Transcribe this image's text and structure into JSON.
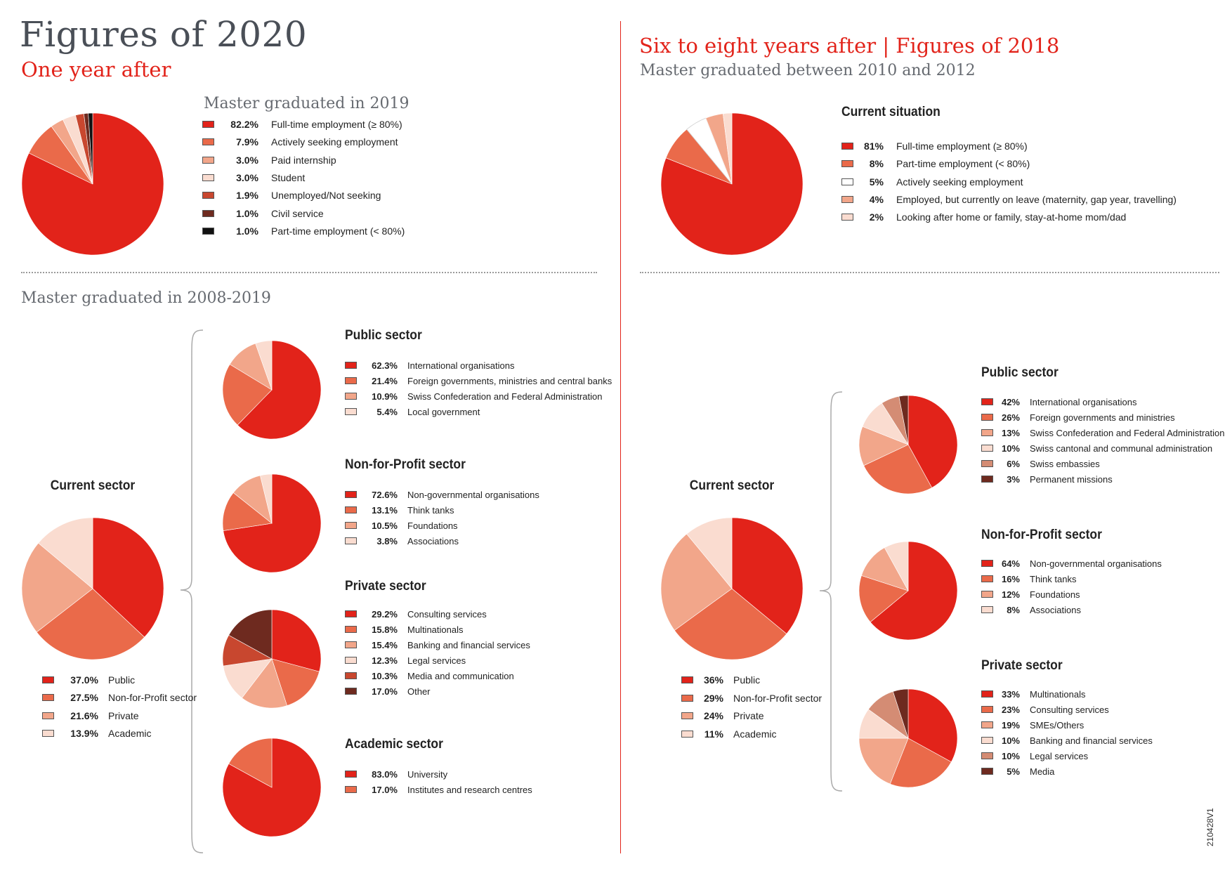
{
  "page": {
    "left_title": "Figures of 2020",
    "left_subtitle": "One year after",
    "left_group_caption": "Master graduated in 2019",
    "left_lower_caption": "Master graduated in 2008-2019",
    "right_title": "Six to eight years after | Figures of 2018",
    "right_subtitle": "Master graduated between 2010 and 2012",
    "doc_code": "210428V1"
  },
  "colors": {
    "red": "#e2231a",
    "orange": "#ea6a4a",
    "salmon": "#f2a68a",
    "pale": "#fadcd0",
    "brick": "#c8472f",
    "brown": "#6e2a1f",
    "black": "#111111",
    "white": "#ffffff",
    "tan": "#d48c74",
    "accent": "#e2231a",
    "divider": "#9a9a9a"
  },
  "chart_data": [
    {
      "id": "l_top",
      "type": "pie",
      "title": "",
      "slices": [
        {
          "pct": "82.2%",
          "label": "Full-time employment (≥ 80%)",
          "value": 82.2,
          "color": "red"
        },
        {
          "pct": "7.9%",
          "label": "Actively seeking employment",
          "value": 7.9,
          "color": "orange"
        },
        {
          "pct": "3.0%",
          "label": "Paid internship",
          "value": 3.0,
          "color": "salmon"
        },
        {
          "pct": "3.0%",
          "label": "Student",
          "value": 3.0,
          "color": "pale"
        },
        {
          "pct": "1.9%",
          "label": "Unemployed/Not seeking",
          "value": 1.9,
          "color": "brick"
        },
        {
          "pct": "1.0%",
          "label": "Civil service",
          "value": 1.0,
          "color": "brown"
        },
        {
          "pct": "1.0%",
          "label": "Part-time employment (< 80%)",
          "value": 1.0,
          "color": "black"
        }
      ]
    },
    {
      "id": "r_top",
      "type": "pie",
      "title": "Current situation",
      "slices": [
        {
          "pct": "81%",
          "label": "Full-time employment (≥ 80%)",
          "value": 81,
          "color": "red"
        },
        {
          "pct": "8%",
          "label": "Part-time employment (< 80%)",
          "value": 8,
          "color": "orange"
        },
        {
          "pct": "5%",
          "label": "Actively seeking employment",
          "value": 5,
          "color": "white"
        },
        {
          "pct": "4%",
          "label": "Employed, but currently on leave (maternity, gap year, travelling)",
          "value": 4,
          "color": "salmon"
        },
        {
          "pct": "2%",
          "label": "Looking after home or family, stay-at-home mom/dad",
          "value": 2,
          "color": "pale"
        }
      ]
    },
    {
      "id": "l_sector",
      "type": "pie",
      "title": "Current sector",
      "slices": [
        {
          "pct": "37.0%",
          "label": "Public",
          "value": 37.0,
          "color": "red"
        },
        {
          "pct": "27.5%",
          "label": "Non-for-Profit sector",
          "value": 27.5,
          "color": "orange"
        },
        {
          "pct": "21.6%",
          "label": "Private",
          "value": 21.6,
          "color": "salmon"
        },
        {
          "pct": "13.9%",
          "label": "Academic",
          "value": 13.9,
          "color": "pale"
        }
      ]
    },
    {
      "id": "l_public",
      "type": "pie",
      "title": "Public sector",
      "slices": [
        {
          "pct": "62.3%",
          "label": "International organisations",
          "value": 62.3,
          "color": "red"
        },
        {
          "pct": "21.4%",
          "label": "Foreign governments, ministries and central banks",
          "value": 21.4,
          "color": "orange"
        },
        {
          "pct": "10.9%",
          "label": "Swiss Confederation and Federal Administration",
          "value": 10.9,
          "color": "salmon"
        },
        {
          "pct": "5.4%",
          "label": "Local government",
          "value": 5.4,
          "color": "pale"
        }
      ]
    },
    {
      "id": "l_nfp",
      "type": "pie",
      "title": "Non-for-Profit sector",
      "slices": [
        {
          "pct": "72.6%",
          "label": "Non-governmental organisations",
          "value": 72.6,
          "color": "red"
        },
        {
          "pct": "13.1%",
          "label": "Think tanks",
          "value": 13.1,
          "color": "orange"
        },
        {
          "pct": "10.5%",
          "label": "Foundations",
          "value": 10.5,
          "color": "salmon"
        },
        {
          "pct": "3.8%",
          "label": "Associations",
          "value": 3.8,
          "color": "pale"
        }
      ]
    },
    {
      "id": "l_private",
      "type": "pie",
      "title": "Private sector",
      "slices": [
        {
          "pct": "29.2%",
          "label": "Consulting services",
          "value": 29.2,
          "color": "red"
        },
        {
          "pct": "15.8%",
          "label": "Multinationals",
          "value": 15.8,
          "color": "orange"
        },
        {
          "pct": "15.4%",
          "label": "Banking and financial services",
          "value": 15.4,
          "color": "salmon"
        },
        {
          "pct": "12.3%",
          "label": "Legal services",
          "value": 12.3,
          "color": "pale"
        },
        {
          "pct": "10.3%",
          "label": "Media and communication",
          "value": 10.3,
          "color": "brick"
        },
        {
          "pct": "17.0%",
          "label": "Other",
          "value": 17.0,
          "color": "brown"
        }
      ]
    },
    {
      "id": "l_academic",
      "type": "pie",
      "title": "Academic sector",
      "slices": [
        {
          "pct": "83.0%",
          "label": "University",
          "value": 83.0,
          "color": "red"
        },
        {
          "pct": "17.0%",
          "label": "Institutes and research centres",
          "value": 17.0,
          "color": "orange"
        }
      ]
    },
    {
      "id": "r_sector",
      "type": "pie",
      "title": "Current sector",
      "slices": [
        {
          "pct": "36%",
          "label": "Public",
          "value": 36,
          "color": "red"
        },
        {
          "pct": "29%",
          "label": "Non-for-Profit sector",
          "value": 29,
          "color": "orange"
        },
        {
          "pct": "24%",
          "label": "Private",
          "value": 24,
          "color": "salmon"
        },
        {
          "pct": "11%",
          "label": "Academic",
          "value": 11,
          "color": "pale"
        }
      ]
    },
    {
      "id": "r_public",
      "type": "pie",
      "title": "Public sector",
      "slices": [
        {
          "pct": "42%",
          "label": "International organisations",
          "value": 42,
          "color": "red"
        },
        {
          "pct": "26%",
          "label": "Foreign governments and ministries",
          "value": 26,
          "color": "orange"
        },
        {
          "pct": "13%",
          "label": "Swiss Confederation and Federal Administration",
          "value": 13,
          "color": "salmon"
        },
        {
          "pct": "10%",
          "label": "Swiss cantonal and communal administration",
          "value": 10,
          "color": "pale"
        },
        {
          "pct": "6%",
          "label": "Swiss embassies",
          "value": 6,
          "color": "tan"
        },
        {
          "pct": "3%",
          "label": "Permanent missions",
          "value": 3,
          "color": "brown"
        }
      ]
    },
    {
      "id": "r_nfp",
      "type": "pie",
      "title": "Non-for-Profit sector",
      "slices": [
        {
          "pct": "64%",
          "label": "Non-governmental organisations",
          "value": 64,
          "color": "red"
        },
        {
          "pct": "16%",
          "label": "Think tanks",
          "value": 16,
          "color": "orange"
        },
        {
          "pct": "12%",
          "label": "Foundations",
          "value": 12,
          "color": "salmon"
        },
        {
          "pct": "8%",
          "label": "Associations",
          "value": 8,
          "color": "pale"
        }
      ]
    },
    {
      "id": "r_private",
      "type": "pie",
      "title": "Private sector",
      "slices": [
        {
          "pct": "33%",
          "label": "Multinationals",
          "value": 33,
          "color": "red"
        },
        {
          "pct": "23%",
          "label": "Consulting services",
          "value": 23,
          "color": "orange"
        },
        {
          "pct": "19%",
          "label": "SMEs/Others",
          "value": 19,
          "color": "salmon"
        },
        {
          "pct": "10%",
          "label": "Banking and financial services",
          "value": 10,
          "color": "pale"
        },
        {
          "pct": "10%",
          "label": "Legal services",
          "value": 10,
          "color": "tan"
        },
        {
          "pct": "5%",
          "label": "Media",
          "value": 5,
          "color": "brown"
        }
      ]
    }
  ]
}
